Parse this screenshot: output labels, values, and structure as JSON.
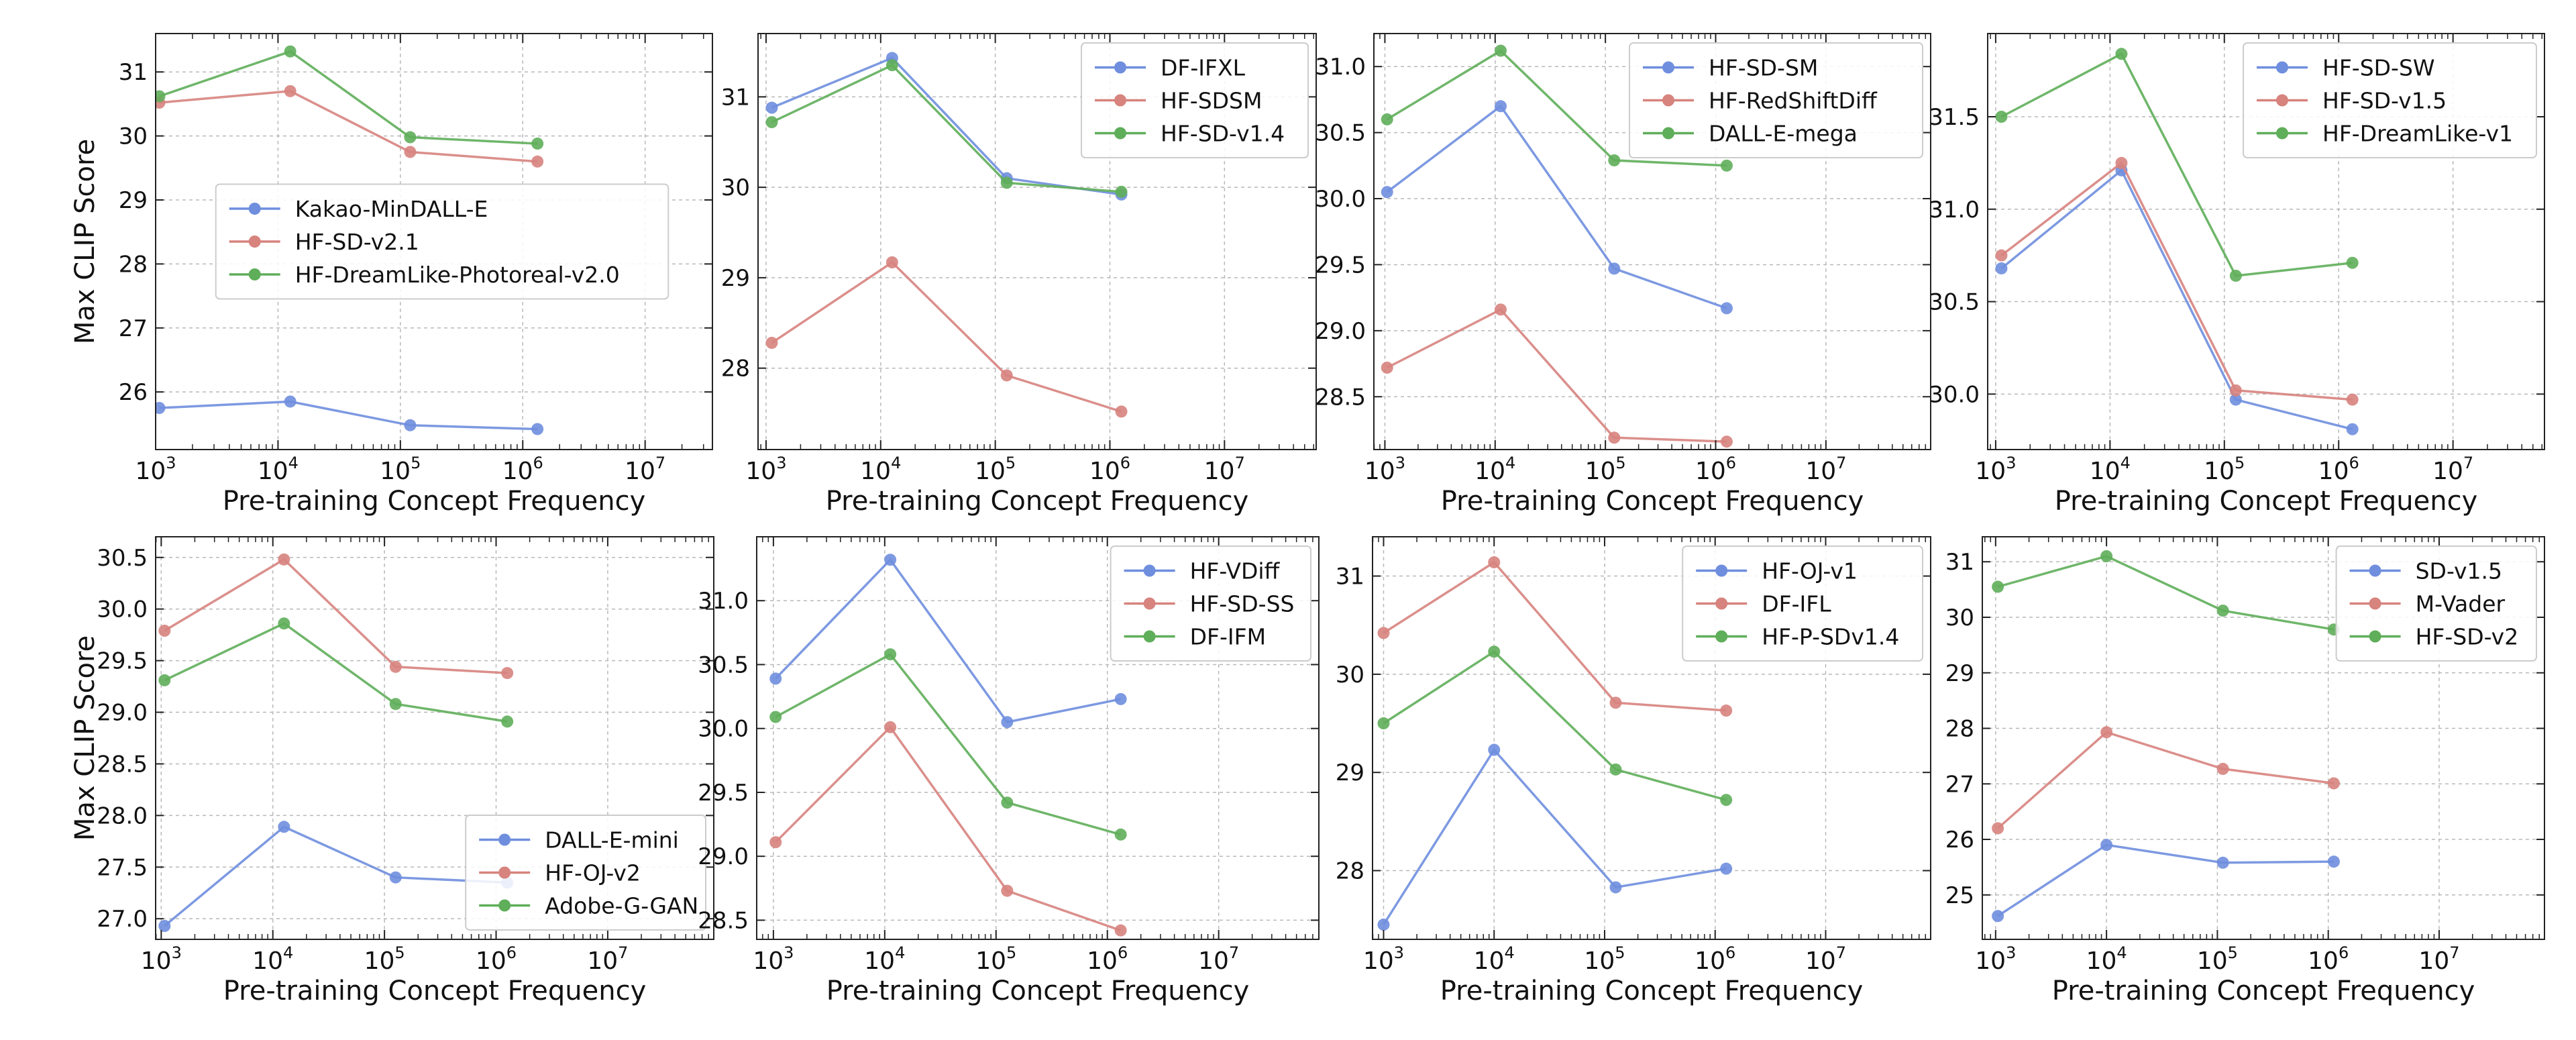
{
  "figure": {
    "ylabel": "Max CLIP Score",
    "xlabel": "Pre-training Concept Frequency"
  },
  "colors": {
    "blue": "#6f8ede",
    "red": "#d7837e",
    "green": "#5fae5a",
    "grid": "#b8b8b8",
    "axis": "#222222"
  },
  "chart_data": [
    {
      "type": "line",
      "xscale": "log",
      "xlim_exp": [
        3,
        7.55
      ],
      "ylim": [
        25.1,
        31.6
      ],
      "yticks": [
        26,
        27,
        28,
        29,
        30,
        31
      ],
      "ytick_labels": [
        "26",
        "27",
        "28",
        "29",
        "30",
        "31"
      ],
      "xtick_exps": [
        3,
        4,
        5,
        6,
        7
      ],
      "legend_loc": "center",
      "xlabel": "Pre-training Concept Frequency",
      "ylabel": "Max CLIP Score",
      "series": [
        {
          "name": "Kakao-MinDALL-E",
          "color": "blue",
          "x_exp": [
            3.03,
            4.1,
            5.08,
            6.12
          ],
          "y": [
            25.75,
            25.85,
            25.48,
            25.42
          ]
        },
        {
          "name": "HF-SD-v2.1",
          "color": "red",
          "x_exp": [
            3.03,
            4.1,
            5.08,
            6.12
          ],
          "y": [
            30.52,
            30.7,
            29.75,
            29.6
          ]
        },
        {
          "name": "HF-DreamLike-Photoreal-v2.0",
          "color": "green",
          "x_exp": [
            3.03,
            4.1,
            5.08,
            6.12
          ],
          "y": [
            30.62,
            31.32,
            29.98,
            29.88
          ]
        }
      ]
    },
    {
      "type": "line",
      "xscale": "log",
      "xlim_exp": [
        2.93,
        7.8
      ],
      "ylim": [
        27.1,
        31.7
      ],
      "yticks": [
        28,
        29,
        30,
        31
      ],
      "ytick_labels": [
        "28",
        "29",
        "30",
        "31"
      ],
      "xtick_exps": [
        3,
        4,
        5,
        6,
        7
      ],
      "legend_loc": "upper right",
      "xlabel": "Pre-training Concept Frequency",
      "ylabel": "",
      "series": [
        {
          "name": "DF-IFXL",
          "color": "blue",
          "x_exp": [
            3.05,
            4.1,
            5.1,
            6.1
          ],
          "y": [
            30.88,
            31.43,
            30.1,
            29.92
          ]
        },
        {
          "name": "HF-SDSM",
          "color": "red",
          "x_exp": [
            3.05,
            4.1,
            5.1,
            6.1
          ],
          "y": [
            28.28,
            29.17,
            27.92,
            27.52
          ]
        },
        {
          "name": "HF-SD-v1.4",
          "color": "green",
          "x_exp": [
            3.05,
            4.1,
            5.1,
            6.1
          ],
          "y": [
            30.72,
            31.35,
            30.05,
            29.95
          ]
        }
      ]
    },
    {
      "type": "line",
      "xscale": "log",
      "xlim_exp": [
        2.9,
        7.95
      ],
      "ylim": [
        28.1,
        31.25
      ],
      "yticks": [
        28.5,
        29,
        29.5,
        30,
        30.5,
        31
      ],
      "ytick_labels": [
        "28.5",
        "29.0",
        "29.5",
        "30.0",
        "30.5",
        "31.0"
      ],
      "xtick_exps": [
        3,
        4,
        5,
        6,
        7
      ],
      "legend_loc": "upper right",
      "xlabel": "Pre-training Concept Frequency",
      "ylabel": "",
      "series": [
        {
          "name": "HF-SD-SM",
          "color": "blue",
          "x_exp": [
            3.02,
            4.05,
            5.08,
            6.1
          ],
          "y": [
            30.05,
            30.7,
            29.47,
            29.17
          ]
        },
        {
          "name": "HF-RedShiftDiff",
          "color": "red",
          "x_exp": [
            3.02,
            4.05,
            5.08,
            6.1
          ],
          "y": [
            28.72,
            29.16,
            28.19,
            28.16
          ]
        },
        {
          "name": "DALL-E-mega",
          "color": "green",
          "x_exp": [
            3.02,
            4.05,
            5.08,
            6.1
          ],
          "y": [
            30.6,
            31.12,
            30.29,
            30.25
          ]
        }
      ]
    },
    {
      "type": "line",
      "xscale": "log",
      "xlim_exp": [
        2.93,
        7.8
      ],
      "ylim": [
        29.7,
        31.95
      ],
      "yticks": [
        30,
        30.5,
        31,
        31.5
      ],
      "ytick_labels": [
        "30.0",
        "30.5",
        "31.0",
        "31.5"
      ],
      "xtick_exps": [
        3,
        4,
        5,
        6,
        7
      ],
      "legend_loc": "upper right",
      "xlabel": "Pre-training Concept Frequency",
      "ylabel": "",
      "series": [
        {
          "name": "HF-SD-SW",
          "color": "blue",
          "x_exp": [
            3.05,
            4.1,
            5.1,
            6.12
          ],
          "y": [
            30.68,
            31.21,
            29.97,
            29.81
          ]
        },
        {
          "name": "HF-SD-v1.5",
          "color": "red",
          "x_exp": [
            3.05,
            4.1,
            5.1,
            6.12
          ],
          "y": [
            30.75,
            31.25,
            30.02,
            29.97
          ]
        },
        {
          "name": "HF-DreamLike-v1",
          "color": "green",
          "x_exp": [
            3.05,
            4.1,
            5.1,
            6.12
          ],
          "y": [
            31.5,
            31.84,
            30.64,
            30.71
          ]
        }
      ]
    },
    {
      "type": "line",
      "xscale": "log",
      "xlim_exp": [
        2.95,
        7.95
      ],
      "ylim": [
        26.8,
        30.7
      ],
      "yticks": [
        27,
        27.5,
        28,
        28.5,
        29,
        29.5,
        30,
        30.5
      ],
      "ytick_labels": [
        "27.0",
        "27.5",
        "28.0",
        "28.5",
        "29.0",
        "29.5",
        "30.0",
        "30.5"
      ],
      "xtick_exps": [
        3,
        4,
        5,
        6,
        7
      ],
      "legend_loc": "lower right",
      "xlabel": "Pre-training Concept Frequency",
      "ylabel": "Max CLIP Score",
      "series": [
        {
          "name": "DALL-E-mini",
          "color": "blue",
          "x_exp": [
            3.03,
            4.1,
            5.1,
            6.1
          ],
          "y": [
            26.93,
            27.89,
            27.4,
            27.35
          ]
        },
        {
          "name": "HF-OJ-v2",
          "color": "red",
          "x_exp": [
            3.03,
            4.1,
            5.1,
            6.1
          ],
          "y": [
            29.79,
            30.48,
            29.44,
            29.38
          ]
        },
        {
          "name": "Adobe-G-GAN",
          "color": "green",
          "x_exp": [
            3.03,
            4.1,
            5.1,
            6.1
          ],
          "y": [
            29.31,
            29.86,
            29.08,
            28.91
          ]
        }
      ]
    },
    {
      "type": "line",
      "xscale": "log",
      "xlim_exp": [
        2.85,
        7.9
      ],
      "ylim": [
        28.35,
        31.5
      ],
      "yticks": [
        28.5,
        29,
        29.5,
        30,
        30.5,
        31
      ],
      "ytick_labels": [
        "28.5",
        "29.0",
        "29.5",
        "30.0",
        "30.5",
        "31.0"
      ],
      "xtick_exps": [
        3,
        4,
        5,
        6,
        7
      ],
      "legend_loc": "upper right",
      "xlabel": "Pre-training Concept Frequency",
      "ylabel": "",
      "series": [
        {
          "name": "HF-VDiff",
          "color": "blue",
          "x_exp": [
            3.02,
            4.05,
            5.1,
            6.12
          ],
          "y": [
            30.39,
            31.32,
            30.05,
            30.23
          ]
        },
        {
          "name": "HF-SD-SS",
          "color": "red",
          "x_exp": [
            3.02,
            4.05,
            5.1,
            6.12
          ],
          "y": [
            29.11,
            30.01,
            28.73,
            28.42
          ]
        },
        {
          "name": "DF-IFM",
          "color": "green",
          "x_exp": [
            3.02,
            4.05,
            5.1,
            6.12
          ],
          "y": [
            30.09,
            30.58,
            29.42,
            29.17
          ]
        }
      ]
    },
    {
      "type": "line",
      "xscale": "log",
      "xlim_exp": [
        2.9,
        7.95
      ],
      "ylim": [
        27.3,
        31.4
      ],
      "yticks": [
        28,
        29,
        30,
        31
      ],
      "ytick_labels": [
        "28",
        "29",
        "30",
        "31"
      ],
      "xtick_exps": [
        3,
        4,
        5,
        6,
        7
      ],
      "legend_loc": "upper right",
      "xlabel": "Pre-training Concept Frequency",
      "ylabel": "",
      "series": [
        {
          "name": "HF-OJ-v1",
          "color": "blue",
          "x_exp": [
            3.0,
            4.0,
            5.1,
            6.1
          ],
          "y": [
            27.45,
            29.23,
            27.83,
            28.02
          ]
        },
        {
          "name": "DF-IFL",
          "color": "red",
          "x_exp": [
            3.0,
            4.0,
            5.1,
            6.1
          ],
          "y": [
            30.42,
            31.14,
            29.71,
            29.63
          ]
        },
        {
          "name": "HF-P-SDv1.4",
          "color": "green",
          "x_exp": [
            3.0,
            4.0,
            5.1,
            6.1
          ],
          "y": [
            29.5,
            30.23,
            29.03,
            28.72
          ]
        }
      ]
    },
    {
      "type": "line",
      "xscale": "log",
      "xlim_exp": [
        2.88,
        7.95
      ],
      "ylim": [
        24.2,
        31.45
      ],
      "yticks": [
        25,
        26,
        27,
        28,
        29,
        30,
        31
      ],
      "ytick_labels": [
        "25",
        "26",
        "27",
        "28",
        "29",
        "30",
        "31"
      ],
      "xtick_exps": [
        3,
        4,
        5,
        6,
        7
      ],
      "legend_loc": "upper right",
      "xlabel": "Pre-training Concept Frequency",
      "ylabel": "",
      "series": [
        {
          "name": "SD-v1.5",
          "color": "blue",
          "x_exp": [
            3.02,
            4.0,
            5.05,
            6.05
          ],
          "y": [
            24.62,
            25.9,
            25.58,
            25.6
          ]
        },
        {
          "name": "M-Vader",
          "color": "red",
          "x_exp": [
            3.02,
            4.0,
            5.05,
            6.05
          ],
          "y": [
            26.2,
            27.93,
            27.27,
            27.01
          ]
        },
        {
          "name": "HF-SD-v2",
          "color": "green",
          "x_exp": [
            3.02,
            4.0,
            5.05,
            6.05
          ],
          "y": [
            30.55,
            31.1,
            30.12,
            29.78
          ]
        }
      ]
    }
  ]
}
